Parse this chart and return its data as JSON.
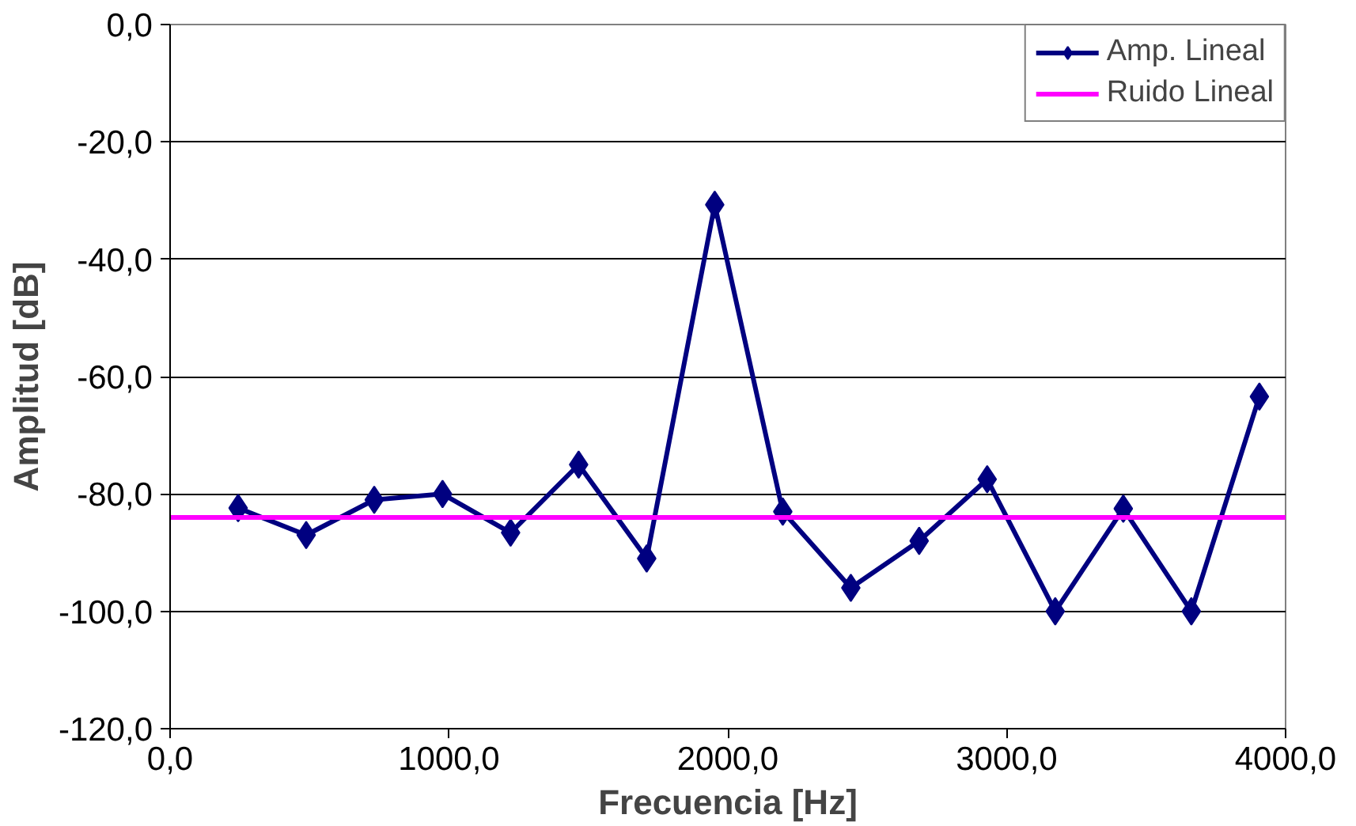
{
  "chart_data": {
    "type": "line",
    "xlabel": "Frecuencia [Hz]",
    "ylabel": "Amplitud [dB]",
    "x": [
      244,
      488,
      732,
      977,
      1221,
      1465,
      1709,
      1953,
      2197,
      2441,
      2686,
      2930,
      3174,
      3418,
      3662,
      3906
    ],
    "series": [
      {
        "name": "Amp. Lineal",
        "color": "#000080",
        "marker": "diamond",
        "values": [
          -82.4,
          -87,
          -81,
          -80,
          -86.6,
          -75,
          -91,
          -30.7,
          -83,
          -96,
          -88,
          -77.5,
          -100,
          -82.5,
          -100,
          -63.4
        ]
      },
      {
        "name": "Ruido Lineal",
        "color": "#ff00ff",
        "marker": "none",
        "x": [
          0,
          4000
        ],
        "values": [
          -84,
          -84
        ]
      }
    ],
    "xlim": [
      0,
      4000
    ],
    "ylim": [
      -120,
      0
    ],
    "xticks": [
      {
        "value": 0,
        "label": "0,0"
      },
      {
        "value": 1000,
        "label": "1000,0"
      },
      {
        "value": 2000,
        "label": "2000,0"
      },
      {
        "value": 3000,
        "label": "3000,0"
      },
      {
        "value": 4000,
        "label": "4000,0"
      }
    ],
    "yticks": [
      {
        "value": 0,
        "label": "0,0"
      },
      {
        "value": -20,
        "label": "-20,0"
      },
      {
        "value": -40,
        "label": "-40,0"
      },
      {
        "value": -60,
        "label": "-60,0"
      },
      {
        "value": -80,
        "label": "-80,0"
      },
      {
        "value": -100,
        "label": "-100,0"
      },
      {
        "value": -120,
        "label": "-120,0"
      }
    ],
    "grid": "y",
    "legend": "top right",
    "line_style": "solid"
  }
}
